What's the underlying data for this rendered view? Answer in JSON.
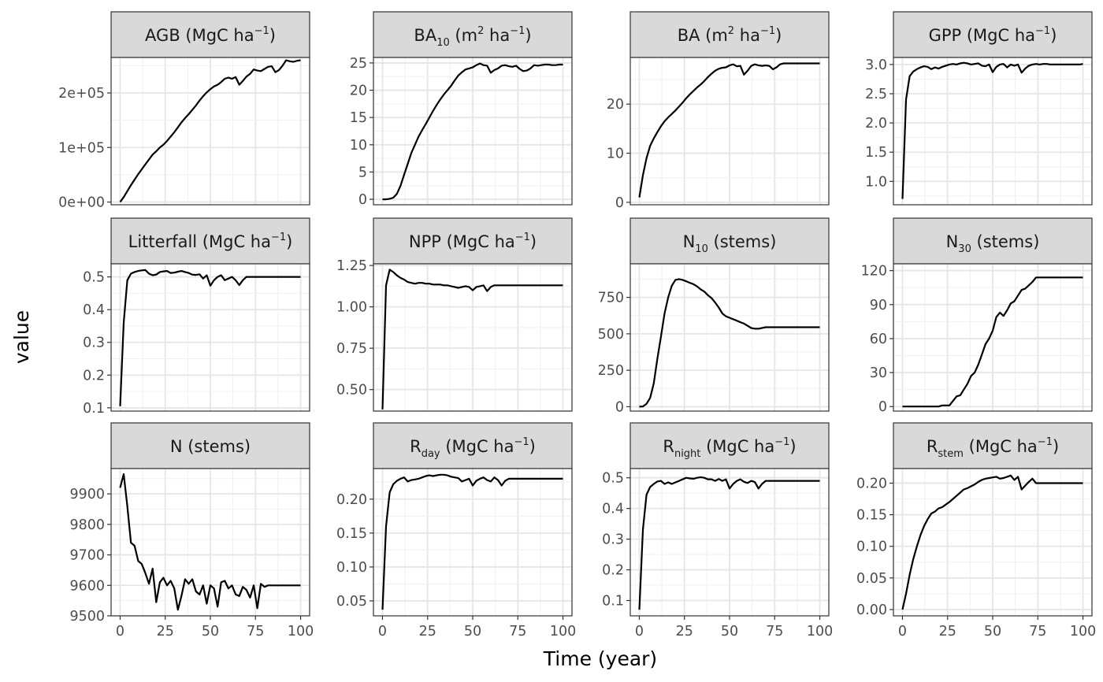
{
  "chart_data": {
    "type": "line",
    "layout": "facet-grid",
    "xlabel": "Time (year)",
    "ylabel": "value",
    "grid": true,
    "x_ticks": [
      0,
      25,
      50,
      75,
      100
    ],
    "x": [
      0,
      2,
      4,
      6,
      8,
      10,
      12,
      14,
      16,
      18,
      20,
      22,
      24,
      26,
      28,
      30,
      32,
      34,
      36,
      38,
      40,
      42,
      44,
      46,
      48,
      50,
      52,
      54,
      56,
      58,
      60,
      62,
      64,
      66,
      68,
      70,
      72,
      74,
      76,
      78,
      80,
      82,
      84,
      86,
      88,
      90,
      92,
      94,
      96,
      98,
      100
    ],
    "panels": [
      {
        "title": "AGB (MgC ha⁻¹)",
        "title_parts": [
          {
            "t": "AGB (MgC ha"
          },
          {
            "t": "−1",
            "sup": true
          },
          {
            "t": ")"
          }
        ],
        "ylim": [
          -5000,
          265000
        ],
        "y_ticks": [
          0,
          100000,
          200000
        ],
        "y_tick_labels": [
          "0e+00",
          "1e+05",
          "2e+05"
        ],
        "values": [
          0,
          9000,
          20000,
          31000,
          41000,
          51000,
          60000,
          69000,
          78000,
          87000,
          93000,
          100000,
          105000,
          112000,
          120000,
          128000,
          137000,
          146000,
          154000,
          161000,
          169000,
          177000,
          186000,
          194000,
          201000,
          207000,
          212000,
          215000,
          220000,
          226000,
          228000,
          226000,
          229000,
          215000,
          222000,
          230000,
          235000,
          243000,
          241000,
          240000,
          244000,
          248000,
          249000,
          238000,
          242000,
          250000,
          260000,
          258000,
          257000,
          259000,
          260000
        ]
      },
      {
        "title": "BA₁₀ (m² ha⁻¹)",
        "title_parts": [
          {
            "t": "BA"
          },
          {
            "t": "10",
            "sub": true
          },
          {
            "t": " (m"
          },
          {
            "t": "2",
            "sup": true
          },
          {
            "t": " ha"
          },
          {
            "t": "−1",
            "sup": true
          },
          {
            "t": ")"
          }
        ],
        "ylim": [
          -1,
          26
        ],
        "y_ticks": [
          0,
          5,
          10,
          15,
          20,
          25
        ],
        "y_tick_labels": [
          "0",
          "5",
          "10",
          "15",
          "20",
          "25"
        ],
        "values": [
          0,
          0,
          0.1,
          0.3,
          1,
          2.5,
          4.5,
          6.5,
          8.5,
          10,
          11.5,
          12.7,
          13.8,
          15,
          16.2,
          17.3,
          18.3,
          19.2,
          20,
          20.8,
          21.8,
          22.7,
          23.3,
          23.8,
          24,
          24.2,
          24.6,
          24.9,
          24.6,
          24.5,
          23.2,
          23.7,
          24,
          24.5,
          24.6,
          24.4,
          24.3,
          24.5,
          23.9,
          23.5,
          23.6,
          24,
          24.6,
          24.5,
          24.6,
          24.7,
          24.7,
          24.6,
          24.6,
          24.7,
          24.7
        ]
      },
      {
        "title": "BA (m² ha⁻¹)",
        "title_parts": [
          {
            "t": "BA (m"
          },
          {
            "t": "2",
            "sup": true
          },
          {
            "t": " ha"
          },
          {
            "t": "−1",
            "sup": true
          },
          {
            "t": ")"
          }
        ],
        "ylim": [
          -0.5,
          29.5
        ],
        "y_ticks": [
          0,
          10,
          20
        ],
        "y_tick_labels": [
          "0",
          "10",
          "20"
        ],
        "values": [
          1,
          5.5,
          9,
          11.5,
          13,
          14.3,
          15.5,
          16.5,
          17.3,
          18,
          18.7,
          19.5,
          20.3,
          21.2,
          22,
          22.7,
          23.4,
          24,
          24.7,
          25.5,
          26.2,
          26.8,
          27.2,
          27.4,
          27.5,
          27.9,
          28.1,
          27.7,
          27.8,
          26,
          26.8,
          27.8,
          28.1,
          27.9,
          27.8,
          27.9,
          27.8,
          27.1,
          27.5,
          28.1,
          28.3,
          28.3,
          28.3,
          28.3,
          28.3,
          28.3,
          28.3,
          28.3,
          28.3,
          28.3,
          28.3
        ]
      },
      {
        "title": "GPP (MgC ha⁻¹)",
        "title_parts": [
          {
            "t": "GPP (MgC ha"
          },
          {
            "t": "−1",
            "sup": true
          },
          {
            "t": ")"
          }
        ],
        "ylim": [
          0.6,
          3.12
        ],
        "y_ticks": [
          1.0,
          1.5,
          2.0,
          2.5,
          3.0
        ],
        "y_tick_labels": [
          "1.0",
          "1.5",
          "2.0",
          "2.5",
          "3.0"
        ],
        "values": [
          0.7,
          2.4,
          2.8,
          2.88,
          2.92,
          2.95,
          2.97,
          2.96,
          2.92,
          2.95,
          2.93,
          2.96,
          2.98,
          3.0,
          3.01,
          3.0,
          3.02,
          3.03,
          3.02,
          3.0,
          3.01,
          3.02,
          2.98,
          2.97,
          3.0,
          2.87,
          2.96,
          3.0,
          3.01,
          2.95,
          3.0,
          2.98,
          3.0,
          2.86,
          2.93,
          2.98,
          3.0,
          3.01,
          3.0,
          3.01,
          3.01,
          3.0,
          3.0,
          3.0,
          3.0,
          3.0,
          3.0,
          3.0,
          3.0,
          3.0,
          3.01
        ]
      },
      {
        "title": "Litterfall (MgC ha⁻¹)",
        "title_parts": [
          {
            "t": "Litterfall (MgC ha"
          },
          {
            "t": "−1",
            "sup": true
          },
          {
            "t": ")"
          }
        ],
        "ylim": [
          0.09,
          0.54
        ],
        "y_ticks": [
          0.1,
          0.2,
          0.3,
          0.4,
          0.5
        ],
        "y_tick_labels": [
          "0.1",
          "0.2",
          "0.3",
          "0.4",
          "0.5"
        ],
        "values": [
          0.105,
          0.36,
          0.49,
          0.51,
          0.515,
          0.518,
          0.52,
          0.521,
          0.51,
          0.505,
          0.507,
          0.515,
          0.517,
          0.518,
          0.512,
          0.513,
          0.516,
          0.518,
          0.515,
          0.512,
          0.507,
          0.506,
          0.508,
          0.495,
          0.505,
          0.473,
          0.49,
          0.5,
          0.505,
          0.49,
          0.495,
          0.5,
          0.49,
          0.475,
          0.49,
          0.5,
          0.5,
          0.5,
          0.5,
          0.5,
          0.5,
          0.5,
          0.5,
          0.5,
          0.5,
          0.5,
          0.5,
          0.5,
          0.5,
          0.5,
          0.5
        ]
      },
      {
        "title": "NPP (MgC ha⁻¹)",
        "title_parts": [
          {
            "t": "NPP (MgC ha"
          },
          {
            "t": "−1",
            "sup": true
          },
          {
            "t": ")"
          }
        ],
        "ylim": [
          0.37,
          1.26
        ],
        "y_ticks": [
          0.5,
          0.75,
          1.0,
          1.25
        ],
        "y_tick_labels": [
          "0.50",
          "0.75",
          "1.00",
          "1.25"
        ],
        "values": [
          0.38,
          1.13,
          1.225,
          1.21,
          1.19,
          1.175,
          1.165,
          1.15,
          1.145,
          1.14,
          1.145,
          1.145,
          1.14,
          1.14,
          1.135,
          1.135,
          1.135,
          1.13,
          1.13,
          1.125,
          1.12,
          1.115,
          1.12,
          1.125,
          1.12,
          1.1,
          1.12,
          1.125,
          1.13,
          1.095,
          1.12,
          1.13,
          1.13,
          1.13,
          1.13,
          1.13,
          1.13,
          1.13,
          1.13,
          1.13,
          1.13,
          1.13,
          1.13,
          1.13,
          1.13,
          1.13,
          1.13,
          1.13,
          1.13,
          1.13,
          1.13
        ]
      },
      {
        "title": "N₁₀ (stems)",
        "title_parts": [
          {
            "t": "N"
          },
          {
            "t": "10",
            "sub": true
          },
          {
            "t": " (stems)"
          }
        ],
        "ylim": [
          -30,
          980
        ],
        "y_ticks": [
          0,
          250,
          500,
          750
        ],
        "y_tick_labels": [
          "0",
          "250",
          "500",
          "750"
        ],
        "values": [
          0,
          2,
          20,
          60,
          160,
          330,
          480,
          640,
          750,
          830,
          870,
          875,
          870,
          860,
          850,
          840,
          825,
          805,
          790,
          765,
          745,
          715,
          680,
          640,
          620,
          610,
          600,
          590,
          580,
          570,
          555,
          540,
          535,
          535,
          540,
          545,
          545,
          545,
          545,
          545,
          545,
          545,
          545,
          545,
          545,
          545,
          545,
          545,
          545,
          545,
          545
        ]
      },
      {
        "title": "N₃₀ (stems)",
        "title_parts": [
          {
            "t": "N"
          },
          {
            "t": "30",
            "sub": true
          },
          {
            "t": " (stems)"
          }
        ],
        "ylim": [
          -4,
          126
        ],
        "y_ticks": [
          0,
          30,
          60,
          90,
          120
        ],
        "y_tick_labels": [
          "0",
          "30",
          "60",
          "90",
          "120"
        ],
        "values": [
          0,
          0,
          0,
          0,
          0,
          0,
          0,
          0,
          0,
          0,
          0,
          1,
          1,
          1,
          5,
          9,
          10,
          15,
          20,
          27,
          30,
          37,
          46,
          55,
          60,
          67,
          79,
          83,
          80,
          85,
          91,
          93,
          98,
          103,
          104,
          107,
          110,
          114,
          114,
          114,
          114,
          114,
          114,
          114,
          114,
          114,
          114,
          114,
          114,
          114,
          114
        ]
      },
      {
        "title": "N (stems)",
        "title_parts": [
          {
            "t": "N (stems)"
          }
        ],
        "ylim": [
          9500,
          9983
        ],
        "y_ticks": [
          9500,
          9600,
          9700,
          9800,
          9900
        ],
        "y_tick_labels": [
          "9500",
          "9600",
          "9700",
          "9800",
          "9900"
        ],
        "values": [
          9920,
          9965,
          9860,
          9740,
          9730,
          9680,
          9670,
          9640,
          9605,
          9655,
          9545,
          9610,
          9625,
          9600,
          9615,
          9590,
          9520,
          9565,
          9620,
          9605,
          9620,
          9580,
          9570,
          9600,
          9540,
          9600,
          9590,
          9530,
          9610,
          9615,
          9590,
          9600,
          9570,
          9565,
          9595,
          9585,
          9560,
          9600,
          9525,
          9605,
          9595,
          9600,
          9600,
          9600,
          9600,
          9600,
          9600,
          9600,
          9600,
          9600,
          9600
        ]
      },
      {
        "title": "R_day (MgC ha⁻¹)",
        "title_parts": [
          {
            "t": "R"
          },
          {
            "t": "day",
            "sub": true
          },
          {
            "t": " (MgC ha"
          },
          {
            "t": "−1",
            "sup": true
          },
          {
            "t": ")"
          }
        ],
        "ylim": [
          0.028,
          0.245
        ],
        "y_ticks": [
          0.05,
          0.1,
          0.15,
          0.2
        ],
        "y_tick_labels": [
          "0.05",
          "0.10",
          "0.15",
          "0.20"
        ],
        "values": [
          0.037,
          0.16,
          0.21,
          0.222,
          0.227,
          0.23,
          0.232,
          0.226,
          0.228,
          0.229,
          0.23,
          0.232,
          0.234,
          0.235,
          0.234,
          0.235,
          0.236,
          0.236,
          0.235,
          0.233,
          0.232,
          0.231,
          0.226,
          0.228,
          0.23,
          0.22,
          0.227,
          0.23,
          0.232,
          0.228,
          0.226,
          0.232,
          0.228,
          0.22,
          0.227,
          0.23,
          0.23,
          0.23,
          0.23,
          0.23,
          0.23,
          0.23,
          0.23,
          0.23,
          0.23,
          0.23,
          0.23,
          0.23,
          0.23,
          0.23,
          0.23
        ]
      },
      {
        "title": "R_night (MgC ha⁻¹)",
        "title_parts": [
          {
            "t": "R"
          },
          {
            "t": "night",
            "sub": true
          },
          {
            "t": " (MgC ha"
          },
          {
            "t": "−1",
            "sup": true
          },
          {
            "t": ")"
          }
        ],
        "ylim": [
          0.05,
          0.53
        ],
        "y_ticks": [
          0.1,
          0.2,
          0.3,
          0.4,
          0.5
        ],
        "y_tick_labels": [
          "0.1",
          "0.2",
          "0.3",
          "0.4",
          "0.5"
        ],
        "values": [
          0.07,
          0.33,
          0.445,
          0.47,
          0.48,
          0.488,
          0.49,
          0.48,
          0.485,
          0.48,
          0.485,
          0.49,
          0.495,
          0.5,
          0.498,
          0.497,
          0.5,
          0.502,
          0.5,
          0.495,
          0.495,
          0.49,
          0.496,
          0.49,
          0.495,
          0.465,
          0.48,
          0.49,
          0.495,
          0.487,
          0.483,
          0.49,
          0.486,
          0.465,
          0.48,
          0.49,
          0.49,
          0.49,
          0.49,
          0.49,
          0.49,
          0.49,
          0.49,
          0.49,
          0.49,
          0.49,
          0.49,
          0.49,
          0.49,
          0.49,
          0.49
        ]
      },
      {
        "title": "R_stem (MgC ha⁻¹)",
        "title_parts": [
          {
            "t": "R"
          },
          {
            "t": "stem",
            "sub": true
          },
          {
            "t": " (MgC ha"
          },
          {
            "t": "−1",
            "sup": true
          },
          {
            "t": ")"
          }
        ],
        "ylim": [
          -0.01,
          0.223
        ],
        "y_ticks": [
          0.0,
          0.05,
          0.1,
          0.15,
          0.2
        ],
        "y_tick_labels": [
          "0.00",
          "0.05",
          "0.10",
          "0.15",
          "0.20"
        ],
        "values": [
          0,
          0.025,
          0.055,
          0.08,
          0.1,
          0.118,
          0.132,
          0.143,
          0.152,
          0.155,
          0.16,
          0.162,
          0.166,
          0.17,
          0.175,
          0.18,
          0.185,
          0.19,
          0.192,
          0.195,
          0.198,
          0.202,
          0.205,
          0.207,
          0.208,
          0.209,
          0.21,
          0.207,
          0.208,
          0.21,
          0.212,
          0.205,
          0.21,
          0.19,
          0.196,
          0.202,
          0.207,
          0.2,
          0.2,
          0.2,
          0.2,
          0.2,
          0.2,
          0.2,
          0.2,
          0.2,
          0.2,
          0.2,
          0.2,
          0.2,
          0.2
        ]
      }
    ]
  }
}
